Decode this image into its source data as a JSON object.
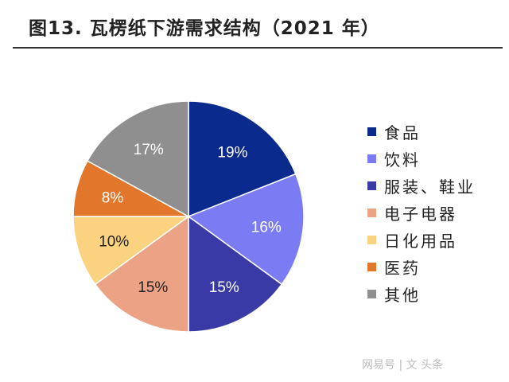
{
  "title": "图13. 瓦楞纸下游需求结构（2021 年）",
  "watermark": "网易号 | 文 头条",
  "chart_data": {
    "type": "pie",
    "title": "图13. 瓦楞纸下游需求结构（2021 年）",
    "start": "12 o'clock, clockwise",
    "legend_position": "right",
    "categories": [
      "食品",
      "饮料",
      "服装、鞋业",
      "电子电器",
      "日化用品",
      "医药",
      "其他"
    ],
    "values": [
      19,
      16,
      15,
      15,
      10,
      8,
      17
    ],
    "labels": [
      "19%",
      "16%",
      "15%",
      "15%",
      "10%",
      "8%",
      "17%"
    ],
    "colors": [
      "#0b2a8e",
      "#7b7cf4",
      "#3a3aa6",
      "#eca385",
      "#fbd280",
      "#e2772c",
      "#8f8f8f"
    ],
    "label_colors": [
      "#fff",
      "#fff",
      "#fff",
      "#222",
      "#222",
      "#fff",
      "#fff"
    ]
  }
}
